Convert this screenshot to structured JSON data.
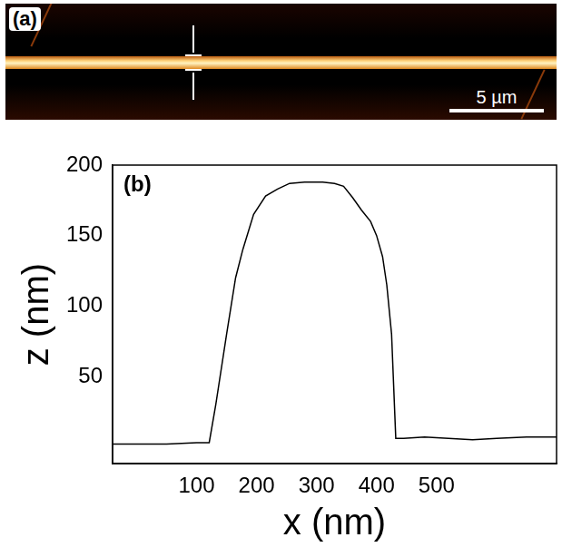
{
  "image_panel": {
    "label": "(a)",
    "scale_bar": "5 µm"
  },
  "chart_data": {
    "type": "line",
    "annotations": [
      "(b)"
    ],
    "x_label": "x (nm)",
    "y_label": "z (nm)",
    "x": [
      -40,
      0,
      50,
      100,
      121,
      132,
      150,
      165,
      177,
      195,
      215,
      235,
      255,
      280,
      310,
      330,
      345,
      360,
      375,
      390,
      400,
      410,
      417,
      425,
      432,
      445,
      480,
      520,
      560,
      600,
      650,
      700
    ],
    "values": [
      2,
      2,
      2,
      3,
      3,
      30,
      80,
      120,
      140,
      165,
      178,
      183,
      187,
      188,
      188,
      187,
      185,
      177,
      168,
      160,
      150,
      135,
      115,
      80,
      6,
      6,
      7,
      6,
      5,
      6,
      7,
      7
    ],
    "color": "#000000",
    "xlim": [
      -40,
      700
    ],
    "xticks": [
      100,
      200,
      300,
      400,
      500
    ],
    "ylim": [
      -12,
      200
    ],
    "yticks": [
      50,
      100,
      150,
      200
    ],
    "grid": false
  }
}
